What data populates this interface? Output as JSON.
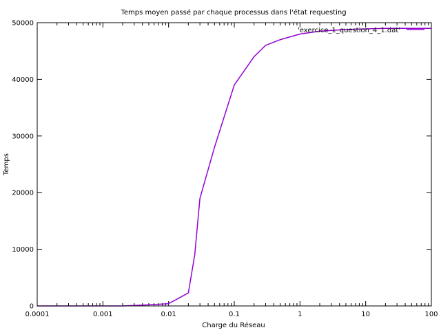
{
  "chart_data": {
    "type": "line",
    "title": "Temps moyen passé par chaque processus dans l'état requesting",
    "xlabel": "Charge du Réseau",
    "ylabel": "Temps",
    "x_scale": "log",
    "xlim": [
      0.0001,
      100
    ],
    "ylim": [
      0,
      50000
    ],
    "x_ticks": [
      0.0001,
      0.001,
      0.01,
      0.1,
      1,
      10,
      100
    ],
    "x_tick_labels": [
      "0.0001",
      "0.001",
      "0.01",
      "0.1",
      "1",
      "10",
      "100"
    ],
    "y_ticks": [
      0,
      10000,
      20000,
      30000,
      40000,
      50000
    ],
    "y_tick_labels": [
      "0",
      "10000",
      "20000",
      "30000",
      "40000",
      "50000"
    ],
    "legend_position": "top-right",
    "grid": false,
    "series": [
      {
        "name": "'exercice_1_question_4_1.dat'",
        "color": "#9400d3",
        "x": [
          0.0001,
          0.0002,
          0.0005,
          0.001,
          0.002,
          0.005,
          0.01,
          0.02,
          0.025,
          0.03,
          0.05,
          0.1,
          0.2,
          0.3,
          0.5,
          1,
          2,
          5,
          10,
          20,
          50,
          100
        ],
        "y": [
          0,
          0,
          0,
          0,
          0,
          200,
          400,
          2300,
          9000,
          19000,
          28000,
          39000,
          44000,
          46000,
          47000,
          48000,
          48500,
          48800,
          48900,
          49000,
          49000,
          49000
        ]
      }
    ]
  }
}
